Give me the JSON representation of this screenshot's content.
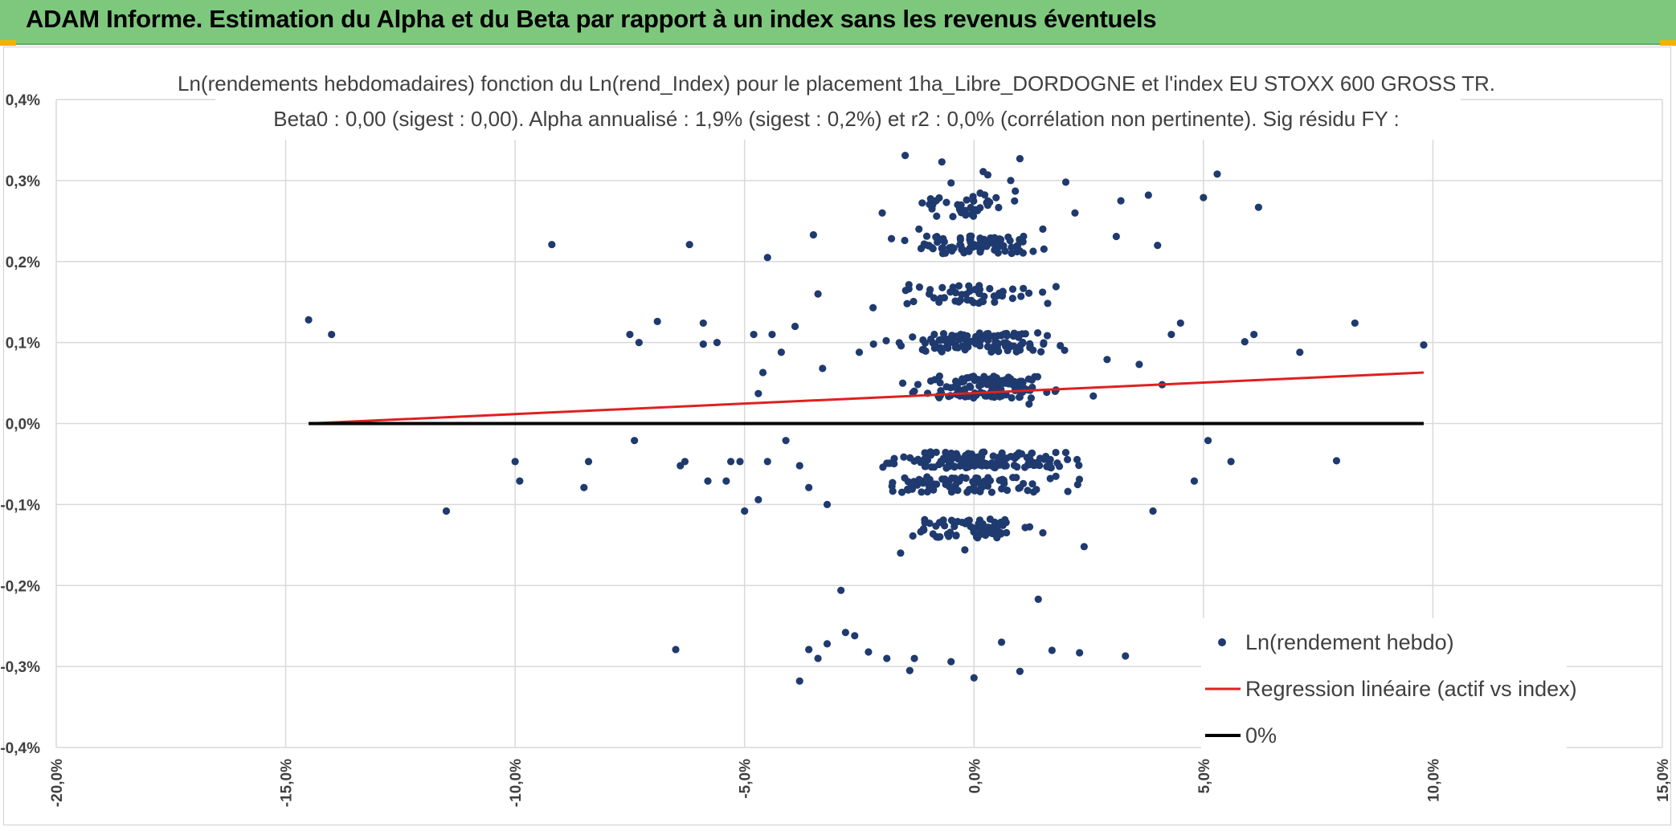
{
  "header": {
    "title": "ADAM Informe. Estimation du Alpha et du Beta par rapport à un index sans les revenus éventuels",
    "accent": "#7ec87e",
    "corner_color": "#f0b400"
  },
  "chart_data": {
    "type": "scatter",
    "title": "Ln(rendements hebdomadaires) fonction du Ln(rend_Index) pour le placement 1ha_Libre_DORDOGNE et l'index EU STOXX 600 GROSS TR.",
    "subtitle": "Beta0 : 0,00 (sigest : 0,00). Alpha annualisé : 1,9% (sigest : 0,2%) et r2 : 0,0% (corrélation non pertinente). Sig résidu FY :",
    "xlim": [
      -20,
      15
    ],
    "ylim": [
      -0.4,
      0.4
    ],
    "x_ticks": [
      {
        "v": -20,
        "label": "-20,0%"
      },
      {
        "v": -15,
        "label": "-15,0%"
      },
      {
        "v": -10,
        "label": "-10,0%"
      },
      {
        "v": -5,
        "label": "-5,0%"
      },
      {
        "v": 0,
        "label": "0,0%"
      },
      {
        "v": 5,
        "label": "5,0%"
      },
      {
        "v": 10,
        "label": "10,0%"
      },
      {
        "v": 15,
        "label": "15,0%"
      }
    ],
    "y_ticks": [
      {
        "v": 0.4,
        "label": "0,4%"
      },
      {
        "v": 0.3,
        "label": "0,3%"
      },
      {
        "v": 0.2,
        "label": "0,2%"
      },
      {
        "v": 0.1,
        "label": "0,1%"
      },
      {
        "v": 0.0,
        "label": "0,0%"
      },
      {
        "v": -0.1,
        "label": "-0,1%"
      },
      {
        "v": -0.2,
        "label": "-0,2%"
      },
      {
        "v": -0.3,
        "label": "-0,3%"
      },
      {
        "v": -0.4,
        "label": "-0,4%"
      }
    ],
    "grid": true,
    "legend_position": "bottom-right",
    "series": [
      {
        "name": "Ln(rendement hebdo)",
        "type": "scatter",
        "color": "#1f3a6e",
        "points": [
          [
            -14.5,
            0.128
          ],
          [
            -14.0,
            0.11
          ],
          [
            -11.5,
            -0.108
          ],
          [
            -10.0,
            -0.047
          ],
          [
            -9.9,
            -0.071
          ],
          [
            -9.2,
            0.221
          ],
          [
            -8.4,
            -0.047
          ],
          [
            -8.5,
            -0.079
          ],
          [
            -7.5,
            0.11
          ],
          [
            -7.3,
            0.1
          ],
          [
            -6.9,
            0.126
          ],
          [
            -7.4,
            -0.021
          ],
          [
            -6.5,
            -0.279
          ],
          [
            -6.4,
            -0.052
          ],
          [
            -6.2,
            0.221
          ],
          [
            -6.3,
            -0.047
          ],
          [
            -5.9,
            0.124
          ],
          [
            -5.9,
            0.098
          ],
          [
            -5.6,
            0.1
          ],
          [
            -5.8,
            -0.071
          ],
          [
            -5.4,
            -0.071
          ],
          [
            -5.3,
            -0.047
          ],
          [
            -5.1,
            -0.047
          ],
          [
            -5.0,
            -0.108
          ],
          [
            -4.8,
            0.11
          ],
          [
            -4.5,
            0.205
          ],
          [
            -4.6,
            0.063
          ],
          [
            -4.7,
            0.037
          ],
          [
            -4.4,
            0.11
          ],
          [
            -4.5,
            -0.047
          ],
          [
            -4.2,
            0.088
          ],
          [
            -4.1,
            -0.021
          ],
          [
            -3.9,
            0.12
          ],
          [
            -3.8,
            -0.052
          ],
          [
            -3.6,
            -0.079
          ],
          [
            -3.8,
            -0.318
          ],
          [
            -3.5,
            0.233
          ],
          [
            -3.4,
            0.16
          ],
          [
            -3.3,
            0.068
          ],
          [
            -3.2,
            -0.1
          ],
          [
            -3.6,
            -0.279
          ],
          [
            -3.4,
            -0.29
          ],
          [
            -3.2,
            -0.272
          ],
          [
            -2.9,
            -0.206
          ],
          [
            -2.8,
            -0.258
          ],
          [
            -2.6,
            -0.262
          ],
          [
            -2.3,
            -0.282
          ],
          [
            -1.9,
            -0.29
          ],
          [
            -1.5,
            0.331
          ],
          [
            -1.3,
            -0.29
          ],
          [
            -0.7,
            0.323
          ],
          [
            -0.5,
            0.297
          ],
          [
            0.2,
            0.311
          ],
          [
            0.3,
            0.307
          ],
          [
            0.8,
            0.3
          ],
          [
            1.0,
            0.327
          ],
          [
            -1.4,
            -0.305
          ],
          [
            -0.5,
            -0.294
          ],
          [
            0.0,
            -0.314
          ],
          [
            1.0,
            -0.306
          ],
          [
            1.4,
            -0.217
          ],
          [
            0.6,
            -0.27
          ],
          [
            1.7,
            -0.28
          ],
          [
            2.3,
            -0.283
          ],
          [
            3.3,
            -0.287
          ],
          [
            -4.7,
            -0.094
          ],
          [
            5.9,
            0.101
          ],
          [
            6.1,
            0.11
          ],
          [
            6.2,
            0.267
          ],
          [
            7.1,
            0.088
          ],
          [
            7.9,
            -0.046
          ],
          [
            8.3,
            0.124
          ],
          [
            9.8,
            0.097
          ],
          [
            5.3,
            0.308
          ],
          [
            5.0,
            0.279
          ],
          [
            5.1,
            -0.021
          ],
          [
            5.6,
            -0.047
          ],
          [
            4.8,
            -0.071
          ],
          [
            4.5,
            0.124
          ],
          [
            4.0,
            0.22
          ],
          [
            3.8,
            0.282
          ],
          [
            3.6,
            0.073
          ],
          [
            4.1,
            0.048
          ],
          [
            4.3,
            0.11
          ],
          [
            3.9,
            -0.108
          ],
          [
            3.2,
            0.275
          ],
          [
            3.1,
            0.231
          ],
          [
            2.9,
            0.079
          ],
          [
            2.6,
            0.034
          ],
          [
            2.4,
            -0.152
          ],
          [
            1.2,
            0.024
          ],
          [
            0.5,
            -0.141
          ],
          [
            -0.2,
            -0.156
          ],
          [
            -1.1,
            -0.13
          ],
          [
            -1.6,
            -0.16
          ],
          [
            -2.0,
            0.26
          ],
          [
            -2.2,
            0.143
          ],
          [
            -1.9,
            -0.049
          ],
          [
            -2.5,
            0.088
          ],
          [
            2.0,
            0.298
          ],
          [
            1.5,
            0.24
          ],
          [
            -0.9,
            0.27
          ],
          [
            0.9,
            0.287
          ],
          [
            -1.2,
            0.24
          ],
          [
            2.2,
            0.26
          ]
        ],
        "bands": [
          {
            "y": 0.22,
            "x_mean": 0,
            "x_sd": 1.2,
            "n": 90,
            "jitter": 0.012
          },
          {
            "y": 0.16,
            "x_mean": 0,
            "x_sd": 1.3,
            "n": 55,
            "jitter": 0.012
          },
          {
            "y": 0.1,
            "x_mean": 0.2,
            "x_sd": 1.4,
            "n": 120,
            "jitter": 0.012
          },
          {
            "y": 0.045,
            "x_mean": 0.1,
            "x_sd": 1.3,
            "n": 120,
            "jitter": 0.014
          },
          {
            "y": -0.045,
            "x_mean": 0,
            "x_sd": 1.6,
            "n": 150,
            "jitter": 0.01
          },
          {
            "y": -0.075,
            "x_mean": 0,
            "x_sd": 1.4,
            "n": 90,
            "jitter": 0.01
          },
          {
            "y": -0.13,
            "x_mean": 0,
            "x_sd": 1.2,
            "n": 70,
            "jitter": 0.012
          },
          {
            "y": 0.27,
            "x_mean": -0.2,
            "x_sd": 1.0,
            "n": 35,
            "jitter": 0.015
          }
        ]
      },
      {
        "name": "Regression linéaire (actif vs index)",
        "type": "line",
        "color": "#e02020",
        "points": [
          [
            -14.5,
            0.0
          ],
          [
            9.8,
            0.063
          ]
        ]
      },
      {
        "name": "0%",
        "type": "line",
        "color": "#000000",
        "points": [
          [
            -14.5,
            0.0
          ],
          [
            9.8,
            0.0
          ]
        ]
      }
    ]
  }
}
